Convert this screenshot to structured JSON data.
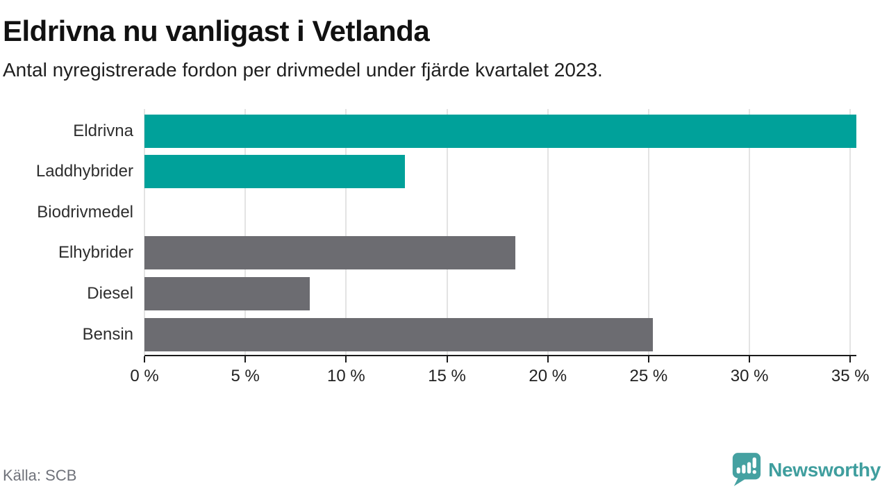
{
  "header": {
    "title": "Eldrivna nu vanligast i Vetlanda",
    "subtitle": "Antal nyregistrerade fordon per drivmedel under fjärde kvartalet 2023."
  },
  "chart_data": {
    "type": "bar",
    "orientation": "horizontal",
    "title": "Eldrivna nu vanligast i Vetlanda",
    "subtitle": "Antal nyregistrerade fordon per drivmedel under fjärde kvartalet 2023.",
    "categories": [
      "Eldrivna",
      "Laddhybrider",
      "Biodrivmedel",
      "Elhybrider",
      "Diesel",
      "Bensin"
    ],
    "values": [
      35.3,
      12.9,
      0,
      18.4,
      8.2,
      25.2
    ],
    "unit": "%",
    "bar_colors": [
      "#00a19a",
      "#00a19a",
      "#6c6c71",
      "#6c6c71",
      "#6c6c71",
      "#6c6c71"
    ],
    "xlim": [
      0,
      35.3
    ],
    "ticks": [
      0,
      5,
      10,
      15,
      20,
      25,
      30,
      35
    ],
    "tick_labels": [
      "0 %",
      "5 %",
      "10 %",
      "15 %",
      "20 %",
      "25 %",
      "30 %",
      "35 %"
    ],
    "grid": true,
    "xlabel": "",
    "ylabel": ""
  },
  "footer": {
    "source": "Källa: SCB",
    "brand": "Newsworthy"
  },
  "colors": {
    "accent_teal": "#00a19a",
    "neutral_gray": "#6c6c71",
    "logo_teal": "#45a1a1",
    "axis": "#1a1a1a",
    "grid": "#e3e3e3",
    "source_text": "#6f727a"
  }
}
